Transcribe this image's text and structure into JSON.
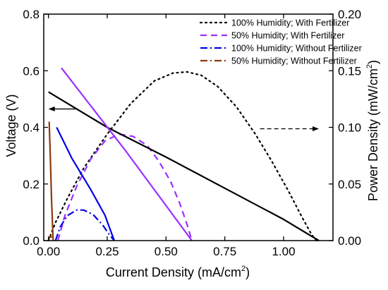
{
  "chart_data": {
    "type": "line",
    "xlabel": "Current Density (mA/cm",
    "xlabel_sup": "2",
    "xlabel_end": ")",
    "ylabel": "Voltage (V)",
    "y2label": "Power Density (mW/cm",
    "y2label_sup": "2",
    "y2label_end": ")",
    "xlim": [
      -0.02,
      1.21
    ],
    "ylim": [
      0,
      0.8
    ],
    "y2lim": [
      0,
      0.2
    ],
    "x_ticks": [
      "0.00",
      "0.25",
      "0.50",
      "0.75",
      "1.00"
    ],
    "y_ticks": [
      "0.0",
      "0.2",
      "0.4",
      "0.6",
      "0.8"
    ],
    "y2_ticks": [
      "0.00",
      "0.05",
      "0.10",
      "0.15",
      "0.20"
    ],
    "legend_position": "top-right",
    "series": [
      {
        "name": "100% Humidity; With Fertilizer",
        "color": "#000000",
        "style": "dotted",
        "axis": "right",
        "x": [
          0.0,
          0.03,
          0.08,
          0.15,
          0.25,
          0.35,
          0.45,
          0.53,
          0.59,
          0.65,
          0.72,
          0.8,
          0.88,
          0.95,
          1.02,
          1.08,
          1.12,
          1.14
        ],
        "y": [
          0.0,
          0.016,
          0.037,
          0.064,
          0.094,
          0.121,
          0.141,
          0.148,
          0.149,
          0.146,
          0.136,
          0.118,
          0.094,
          0.07,
          0.044,
          0.02,
          0.005,
          0.0
        ]
      },
      {
        "name": "50%  Humidity; With Fertilizer",
        "color": "#9b30ff",
        "style": "dashed",
        "axis": "right",
        "x": [
          0.04,
          0.07,
          0.12,
          0.18,
          0.24,
          0.3,
          0.36,
          0.42,
          0.47,
          0.52,
          0.56,
          0.59,
          0.61
        ],
        "y": [
          0.0,
          0.022,
          0.048,
          0.072,
          0.088,
          0.094,
          0.092,
          0.084,
          0.07,
          0.052,
          0.032,
          0.014,
          0.0
        ]
      },
      {
        "name": "100% Humidity; Without Fertilizer",
        "color": "#0000ee",
        "style": "dashdot",
        "axis": "right",
        "x": [
          0.03,
          0.05,
          0.08,
          0.12,
          0.15,
          0.19,
          0.23,
          0.26,
          0.28
        ],
        "y": [
          0.0,
          0.012,
          0.022,
          0.027,
          0.027,
          0.023,
          0.014,
          0.005,
          0.0
        ]
      },
      {
        "name": "50%  Humidity; Without Fertilizer",
        "color": "#8b3a0e",
        "style": "dashdot",
        "axis": "right",
        "x": [
          0.0,
          0.005,
          0.01,
          0.015,
          0.02
        ],
        "y": [
          0.0,
          0.003,
          0.004,
          0.002,
          0.0
        ]
      },
      {
        "color": "#000000",
        "style": "solid",
        "axis": "left",
        "x": [
          0.0,
          0.25,
          0.5,
          0.75,
          1.0,
          1.15
        ],
        "y": [
          0.525,
          0.4,
          0.295,
          0.185,
          0.075,
          0.0
        ]
      },
      {
        "color": "#9b30ff",
        "style": "solid",
        "axis": "left",
        "x": [
          0.055,
          0.33,
          0.61
        ],
        "y": [
          0.61,
          0.315,
          0.0
        ]
      },
      {
        "color": "#0000ee",
        "style": "solid",
        "axis": "left",
        "x": [
          0.035,
          0.1,
          0.18,
          0.24,
          0.28
        ],
        "y": [
          0.4,
          0.29,
          0.18,
          0.09,
          0.0
        ]
      },
      {
        "color": "#8b3a0e",
        "style": "solid",
        "axis": "left",
        "x": [
          0.003,
          0.008,
          0.013,
          0.02
        ],
        "y": [
          0.42,
          0.3,
          0.15,
          0.0
        ]
      }
    ],
    "annotations": [
      {
        "name": "left-axis-arrow",
        "style": "solid",
        "x1": 0.12,
        "y1": 0.465,
        "x2": 0.0,
        "y2": 0.465
      },
      {
        "name": "right-axis-arrow",
        "style": "dashed",
        "x1": 0.9,
        "y1": 0.395,
        "x2": 1.15,
        "y2": 0.395
      }
    ]
  }
}
